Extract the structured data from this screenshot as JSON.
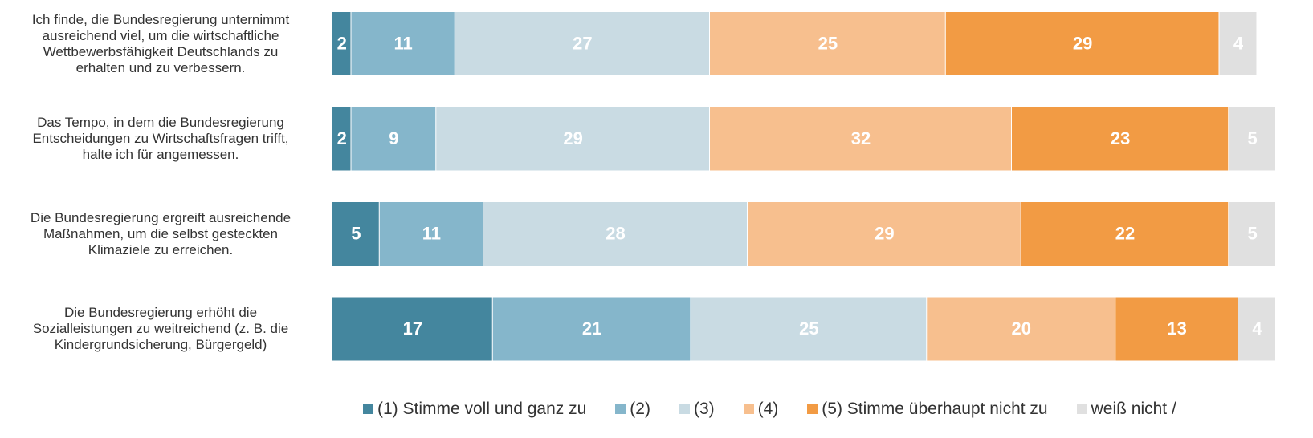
{
  "chart_data": {
    "type": "stacked-bar-horizontal",
    "categories": [
      "Ich finde, die Bundesregierung unternimmt\nausreichend viel, um die wirtschaftliche\nWettbewerbsfähigkeit Deutschlands zu\nerhalten und zu verbessern.",
      "Das Tempo, in dem die Bundesregierung\nEntscheidungen zu Wirtschaftsfragen trifft,\nhalte ich für angemessen.",
      "Die Bundesregierung ergreift ausreichende\nMaßnahmen, um die selbst gesteckten\nKlimaziele zu erreichen.",
      "Die Bundesregierung erhöht die\nSozialleistungen zu weitreichend (z. B. die\nKindergrundsicherung, Bürgergeld)"
    ],
    "series": [
      {
        "name": "(1) Stimme voll und ganz zu",
        "color": "#44869e",
        "values": [
          2,
          2,
          5,
          17
        ]
      },
      {
        "name": "(2)",
        "color": "#85b6cb",
        "values": [
          11,
          9,
          11,
          21
        ]
      },
      {
        "name": "(3)",
        "color": "#c9dbe3",
        "values": [
          27,
          29,
          28,
          25
        ]
      },
      {
        "name": "(4)",
        "color": "#f7bf8e",
        "values": [
          25,
          32,
          29,
          20
        ]
      },
      {
        "name": "(5) Stimme überhaupt nicht zu",
        "color": "#f29b44",
        "values": [
          29,
          23,
          22,
          13
        ]
      },
      {
        "name": "weiß nicht /",
        "color": "#e0e0e0",
        "values": [
          4,
          5,
          5,
          4
        ]
      }
    ],
    "xlim": [
      0,
      100
    ]
  }
}
